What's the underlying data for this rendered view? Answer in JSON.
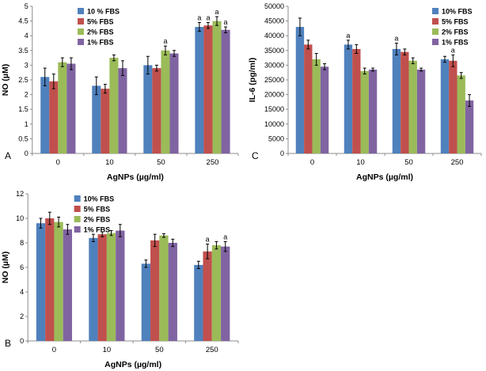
{
  "figure_title": "",
  "panels": {
    "a_label": "A",
    "b_label": "B",
    "c_label": "C"
  },
  "colors": {
    "series_blue": "#4F81BD",
    "series_red": "#C0504D",
    "series_green": "#9BBB59",
    "series_purple": "#8064A2",
    "axis": "#8c8c8c",
    "error_bar": "#000000",
    "text": "#000000"
  },
  "chart_data": [
    {
      "id": "A",
      "panel_label": "A",
      "type": "bar",
      "title": "",
      "xlabel": "AgNPs (µg/ml)",
      "ylabel": "NO (µM)",
      "categories": [
        "0",
        "10",
        "50",
        "250"
      ],
      "ylim": [
        0,
        5
      ],
      "ytick_step": 0.5,
      "grid": false,
      "legend_position": "top-left",
      "series": [
        {
          "name": "10 % FBS",
          "color": "#4F81BD",
          "values": [
            2.6,
            2.3,
            3.0,
            4.3
          ],
          "errors": [
            0.3,
            0.3,
            0.3,
            0.15
          ],
          "annotations": [
            "",
            "",
            "",
            "a"
          ]
        },
        {
          "name": "5% FBS",
          "color": "#C0504D",
          "values": [
            2.45,
            2.2,
            2.9,
            4.35
          ],
          "errors": [
            0.25,
            0.15,
            0.1,
            0.1
          ],
          "annotations": [
            "",
            "",
            "",
            "a"
          ]
        },
        {
          "name": "2% FBS",
          "color": "#9BBB59",
          "values": [
            3.1,
            3.25,
            3.5,
            4.5
          ],
          "errors": [
            0.15,
            0.1,
            0.15,
            0.15
          ],
          "annotations": [
            "",
            "",
            "a",
            "a"
          ]
        },
        {
          "name": "1% FBS",
          "color": "#8064A2",
          "values": [
            3.05,
            2.9,
            3.4,
            4.2
          ],
          "errors": [
            0.2,
            0.25,
            0.1,
            0.1
          ],
          "annotations": [
            "",
            "",
            "",
            "a"
          ]
        }
      ]
    },
    {
      "id": "C",
      "panel_label": "C",
      "type": "bar",
      "title": "",
      "xlabel": "AgNPs (µg/ml)",
      "ylabel": "IL-6 (pg/ml)",
      "categories": [
        "0",
        "10",
        "50",
        "250"
      ],
      "ylim": [
        0,
        50000
      ],
      "ytick_step": 5000,
      "grid": false,
      "legend_position": "top-right",
      "series": [
        {
          "name": "10% FBS",
          "color": "#4F81BD",
          "values": [
            43000,
            37000,
            35500,
            32000
          ],
          "errors": [
            3000,
            1500,
            2000,
            1000
          ],
          "annotations": [
            "",
            "a",
            "a",
            ""
          ]
        },
        {
          "name": "5% FBS",
          "color": "#C0504D",
          "values": [
            37000,
            35500,
            34500,
            31500
          ],
          "errors": [
            1500,
            1500,
            1000,
            2000
          ],
          "annotations": [
            "",
            "",
            "",
            "a"
          ]
        },
        {
          "name": "2% FBS",
          "color": "#9BBB59",
          "values": [
            32000,
            28000,
            31500,
            26500
          ],
          "errors": [
            2000,
            1000,
            1000,
            1000
          ],
          "annotations": [
            "",
            "",
            "",
            ""
          ]
        },
        {
          "name": "1% FBS",
          "color": "#8064A2",
          "values": [
            29500,
            28500,
            28500,
            18000
          ],
          "errors": [
            1000,
            500,
            500,
            2000
          ],
          "annotations": [
            "",
            "",
            "",
            ""
          ]
        }
      ]
    },
    {
      "id": "B",
      "panel_label": "B",
      "type": "bar",
      "title": "",
      "xlabel": "AgNPs (µg/ml)",
      "ylabel": "NO (µM)",
      "categories": [
        "0",
        "10",
        "50",
        "250"
      ],
      "ylim": [
        0,
        12
      ],
      "ytick_step": 2,
      "grid": false,
      "legend_position": "top-left",
      "series": [
        {
          "name": "10% FBS",
          "color": "#4F81BD",
          "values": [
            9.6,
            8.4,
            6.3,
            6.2
          ],
          "errors": [
            0.4,
            0.3,
            0.3,
            0.3
          ],
          "annotations": [
            "",
            "",
            "",
            ""
          ]
        },
        {
          "name": "5% FBS",
          "color": "#C0504D",
          "values": [
            10.0,
            8.7,
            8.2,
            7.3
          ],
          "errors": [
            0.5,
            0.2,
            0.5,
            0.6
          ],
          "annotations": [
            "",
            "",
            "",
            "a"
          ]
        },
        {
          "name": "2% FBS",
          "color": "#9BBB59",
          "values": [
            9.7,
            8.8,
            8.6,
            7.8
          ],
          "errors": [
            0.4,
            0.2,
            0.15,
            0.3
          ],
          "annotations": [
            "",
            "",
            "",
            ""
          ]
        },
        {
          "name": "1% FBS",
          "color": "#8064A2",
          "values": [
            9.1,
            9.0,
            8.0,
            7.7
          ],
          "errors": [
            0.4,
            0.5,
            0.3,
            0.4
          ],
          "annotations": [
            "",
            "",
            "",
            "a"
          ]
        }
      ]
    }
  ]
}
